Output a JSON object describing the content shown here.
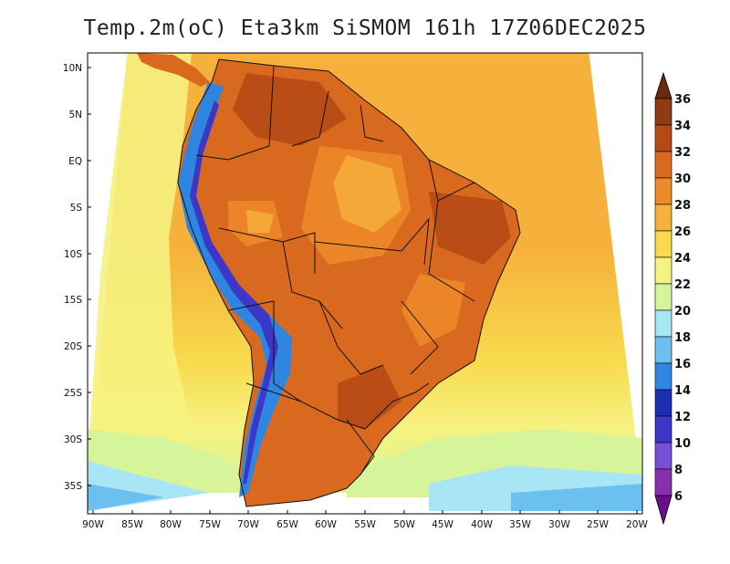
{
  "title": "Temp.2m(oC) Eta3km SiSMOM 161h 17Z06DEC2025",
  "lat_labels": [
    "10N",
    "5N",
    "EQ",
    "5S",
    "10S",
    "15S",
    "20S",
    "25S",
    "30S",
    "35S"
  ],
  "lon_labels": [
    "90W",
    "85W",
    "80W",
    "75W",
    "70W",
    "65W",
    "60W",
    "55W",
    "50W",
    "45W",
    "40W",
    "35W",
    "30W",
    "25W",
    "20W"
  ],
  "colorbar": {
    "labels": [
      "36",
      "34",
      "32",
      "30",
      "28",
      "26",
      "24",
      "22",
      "20",
      "18",
      "16",
      "14",
      "12",
      "10",
      "8",
      "6"
    ],
    "colors": [
      "#6b2a0f",
      "#8e3a13",
      "#b64a16",
      "#d9691e",
      "#ef8a2a",
      "#f5b13c",
      "#f8da4c",
      "#f6f27f",
      "#d6f59a",
      "#a9e6f5",
      "#6cc0f0",
      "#2f86e0",
      "#1c2fb0",
      "#3d37c8",
      "#7a4fd8",
      "#8a2fb0",
      "#6a0f8a"
    ]
  },
  "map_colors": {
    "ocean_warm": "#f5b13c",
    "ocean_mid": "#f8da4c",
    "ocean_cool": "#f6f27f",
    "ocean_cold": "#d6f59a",
    "ocean_south": "#a9e6f5",
    "ocean_far_south": "#6cc0f0",
    "land_hot": "#d9691e",
    "land_very_hot": "#b64a16",
    "land_warm": "#ef8a2a",
    "andes_cold": "#2f86e0",
    "andes_peak": "#3d37c8"
  }
}
